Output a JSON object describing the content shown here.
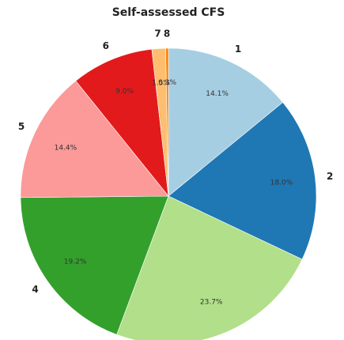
{
  "chart_data": {
    "type": "pie",
    "title": "Self-assessed CFS",
    "categories": [
      "1",
      "2",
      "3",
      "4",
      "5",
      "6",
      "7",
      "8"
    ],
    "values": [
      14.1,
      18.0,
      23.7,
      19.2,
      14.4,
      9.0,
      1.5,
      0.3
    ],
    "value_labels": [
      "14.1%",
      "18.0%",
      "23.7%",
      "19.2%",
      "14.4%",
      "9.0%",
      "1.5%",
      "0.3%"
    ],
    "colors": [
      "#a6cee3",
      "#1f78b4",
      "#b2df8a",
      "#33a02c",
      "#fb9a99",
      "#e31a1c",
      "#fdbf6f",
      "#ff7f00"
    ],
    "start_angle": 90,
    "direction": "clockwise",
    "legend": "none"
  }
}
